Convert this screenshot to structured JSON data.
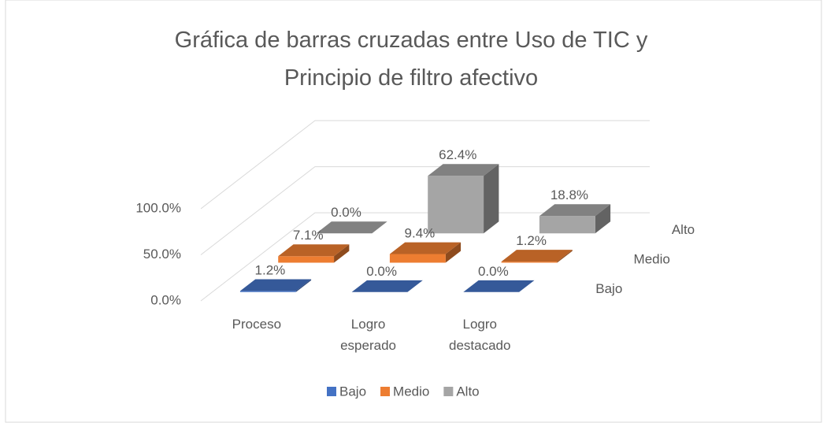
{
  "chart_data": {
    "type": "bar3d",
    "title": "Gráfica de barras cruzadas entre Uso de TIC y Principio de filtro afectivo",
    "categories": [
      "Proceso",
      "Logro esperado",
      "Logro destacado"
    ],
    "series": [
      {
        "name": "Bajo",
        "color": "#4472c4",
        "values": [
          1.2,
          0,
          0
        ],
        "value_labels": [
          "1.2%",
          "0.0%",
          "0.0%"
        ]
      },
      {
        "name": "Medio",
        "color": "#ed7d31",
        "values": [
          7.1,
          9.4,
          1.2
        ],
        "value_labels": [
          "7.1%",
          "9.4%",
          "1.2%"
        ]
      },
      {
        "name": "Alto",
        "color": "#a5a5a5",
        "values": [
          0,
          62.4,
          18.8
        ],
        "value_labels": [
          "0.0%",
          "62.4%",
          "18.8%"
        ]
      }
    ],
    "ylim": [
      0,
      100
    ],
    "yticks": [
      {
        "value": 0,
        "label": "0.0%"
      },
      {
        "value": 50,
        "label": "50.0%"
      },
      {
        "value": 100,
        "label": "100.0%"
      }
    ],
    "grid": true,
    "legend": "bottom"
  }
}
